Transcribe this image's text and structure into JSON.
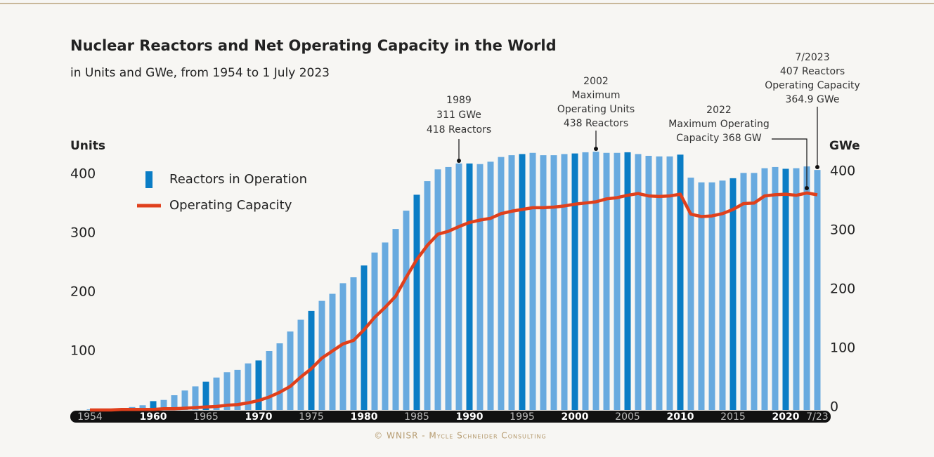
{
  "chart_data": {
    "type": "bar-line",
    "title": "Nuclear Reactors and Net Operating Capacity in the World",
    "subtitle": "in Units and GWe, from 1954 to 1 July 2023",
    "y_label": "Units",
    "y2_label": "GWe",
    "footer": "© WNISR - Mycle Schneider Consulting",
    "categories": [
      "1954",
      null,
      null,
      null,
      null,
      null,
      "1960",
      null,
      null,
      null,
      null,
      "1965",
      null,
      null,
      null,
      null,
      "1970",
      null,
      null,
      null,
      null,
      "1975",
      null,
      null,
      null,
      null,
      "1980",
      null,
      null,
      null,
      null,
      "1985",
      null,
      null,
      null,
      null,
      "1990",
      null,
      null,
      null,
      null,
      "1995",
      null,
      null,
      null,
      null,
      "2000",
      null,
      null,
      null,
      null,
      "2005",
      null,
      null,
      null,
      null,
      "2010",
      null,
      null,
      null,
      null,
      "2015",
      null,
      null,
      null,
      null,
      "2020",
      null,
      null,
      "7/23"
    ],
    "series": [
      {
        "name": "Reactors in Operation",
        "color": "#68aadf",
        "colors": [
          "#68aadf",
          "#0b7dc5",
          "#68aadf",
          "#68aadf",
          "#68aadf",
          "#68aadf",
          "#0b7dc5",
          "#68aadf",
          "#68aadf",
          "#68aadf",
          "#68aadf",
          "#0b7dc5",
          "#68aadf",
          "#68aadf",
          "#68aadf",
          "#68aadf",
          "#0b7dc5",
          "#68aadf",
          "#68aadf",
          "#68aadf",
          "#68aadf",
          "#0b7dc5",
          "#68aadf",
          "#68aadf",
          "#68aadf",
          "#68aadf",
          "#0b7dc5",
          "#68aadf",
          "#68aadf",
          "#68aadf",
          "#68aadf",
          "#0b7dc5",
          "#68aadf",
          "#68aadf",
          "#68aadf",
          "#68aadf",
          "#0b7dc5",
          "#68aadf",
          "#68aadf",
          "#68aadf",
          "#68aadf",
          "#0b7dc5",
          "#68aadf",
          "#68aadf",
          "#68aadf",
          "#68aadf",
          "#0b7dc5",
          "#68aadf",
          "#68aadf",
          "#68aadf",
          "#68aadf",
          "#0b7dc5",
          "#68aadf",
          "#68aadf",
          "#68aadf",
          "#68aadf",
          "#0b7dc5",
          "#68aadf",
          "#68aadf",
          "#68aadf",
          "#68aadf",
          "#0b7dc5",
          "#68aadf",
          "#68aadf",
          "#68aadf",
          "#68aadf",
          "#0b7dc5",
          "#68aadf",
          "#68aadf",
          "#68aadf"
        ],
        "legend_color": "#0b7dc5",
        "values": [
          1,
          1,
          2,
          3,
          5,
          8,
          15,
          17,
          25,
          33,
          40,
          48,
          55,
          64,
          68,
          79,
          84,
          100,
          113,
          133,
          153,
          168,
          185,
          197,
          215,
          225,
          245,
          267,
          284,
          307,
          338,
          365,
          388,
          408,
          412,
          418,
          418,
          417,
          421,
          429,
          432,
          434,
          436,
          432,
          432,
          434,
          435,
          437,
          438,
          436,
          436,
          437,
          434,
          431,
          430,
          430,
          433,
          394,
          386,
          386,
          389,
          393,
          402,
          402,
          410,
          412,
          409,
          410,
          413,
          407
        ]
      },
      {
        "name": "Operating Capacity",
        "color": "#e0401c",
        "axis": "y2",
        "values": [
          0,
          0,
          0,
          1,
          1,
          1,
          1,
          2,
          2,
          3,
          4,
          5,
          6,
          8,
          9,
          12,
          16,
          22,
          30,
          40,
          56,
          70,
          88,
          100,
          112,
          118,
          136,
          157,
          174,
          193,
          225,
          255,
          279,
          298,
          303,
          311,
          318,
          322,
          325,
          333,
          337,
          340,
          343,
          343,
          344,
          346,
          349,
          351,
          353,
          358,
          360,
          364,
          367,
          363,
          362,
          363,
          366,
          332,
          328,
          329,
          333,
          340,
          350,
          351,
          363,
          365,
          366,
          364,
          368,
          364.9
        ]
      }
    ],
    "ylim": [
      0,
      450
    ],
    "yticks": [
      100,
      200,
      300,
      400
    ],
    "y2lim": [
      0,
      450
    ],
    "y2ticks": [
      0,
      100,
      200,
      300,
      400
    ],
    "annotations": [
      {
        "lines": [
          "1989",
          "311 GWe",
          "418 Reactors"
        ]
      },
      {
        "lines": [
          "2002",
          "Maximum",
          "Operating Units",
          "438 Reactors"
        ]
      },
      {
        "lines": [
          "2022",
          "Maximum Operating",
          "Capacity 368 GW"
        ]
      },
      {
        "lines": [
          "7/2023",
          "407  Reactors",
          "Operating Capacity",
          "364.9 GWe"
        ]
      }
    ]
  }
}
